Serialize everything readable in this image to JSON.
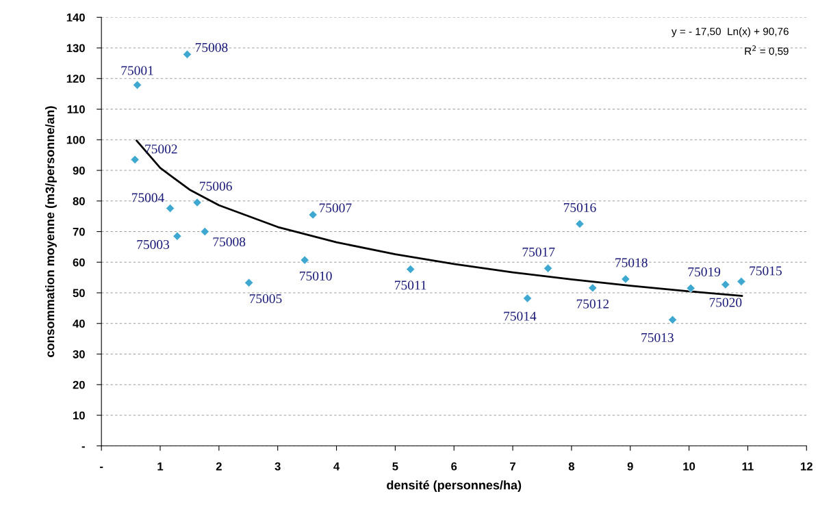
{
  "chart_data": {
    "type": "scatter",
    "xlabel": "densité (personnes/ha)",
    "ylabel": "consommation moyenne (m3/personne/an)",
    "xlim": [
      0,
      12
    ],
    "ylim": [
      0,
      140
    ],
    "xticks": [
      {
        "value": 0,
        "label": "-"
      },
      1,
      2,
      3,
      4,
      5,
      6,
      7,
      8,
      9,
      10,
      11,
      12
    ],
    "yticks": [
      {
        "value": 0,
        "label": "-"
      },
      10,
      20,
      30,
      40,
      50,
      60,
      70,
      80,
      90,
      100,
      110,
      120,
      130,
      140
    ],
    "grid": "y",
    "legend": false,
    "marker": "diamond",
    "series": [
      {
        "color": "#3ea8d0",
        "x": [
          1.46,
          0.61,
          0.57,
          1.17,
          1.63,
          1.29,
          1.76,
          3.6,
          3.46,
          2.51,
          8.14,
          5.26,
          7.6,
          7.25,
          8.36,
          8.92,
          9.72,
          10.03,
          10.62,
          10.89
        ],
        "values": [
          127.9,
          117.9,
          93.5,
          77.6,
          79.5,
          68.5,
          70.0,
          75.5,
          60.7,
          53.3,
          72.5,
          57.7,
          58.0,
          48.2,
          51.6,
          54.5,
          41.2,
          51.5,
          52.7,
          53.7
        ]
      },
      {
        "type": "line",
        "color": "#000000",
        "marker": "none",
        "line_style": "solid",
        "x": [
          0.6,
          1,
          1.5,
          2,
          3,
          4,
          5,
          6,
          7,
          8,
          9,
          10,
          10.9
        ],
        "values": [
          99.7,
          90.8,
          83.7,
          78.6,
          71.5,
          66.5,
          62.6,
          59.4,
          56.7,
          54.4,
          52.3,
          50.5,
          49.0
        ]
      }
    ],
    "annotations": [
      "y = - 17,50  Ln(x) + 90,76",
      "R$^{2}$ = 0,59",
      {
        "text": "75008",
        "x": 1.46,
        "y": 127.9
      },
      {
        "text": "75001",
        "x": 0.61,
        "y": 117.9
      },
      {
        "text": "75002",
        "x": 0.57,
        "y": 93.5
      },
      {
        "text": "75004",
        "x": 1.17,
        "y": 77.6
      },
      {
        "text": "75006",
        "x": 1.63,
        "y": 79.5
      },
      {
        "text": "75003",
        "x": 1.29,
        "y": 68.5
      },
      {
        "text": "75008",
        "x": 1.76,
        "y": 70.0
      },
      {
        "text": "75007",
        "x": 3.6,
        "y": 75.5
      },
      {
        "text": "75010",
        "x": 3.46,
        "y": 60.7
      },
      {
        "text": "75005",
        "x": 2.51,
        "y": 53.3
      },
      {
        "text": "75016",
        "x": 8.14,
        "y": 72.5
      },
      {
        "text": "75011",
        "x": 5.26,
        "y": 57.7
      },
      {
        "text": "75017",
        "x": 7.6,
        "y": 58.0
      },
      {
        "text": "75014",
        "x": 7.25,
        "y": 48.2
      },
      {
        "text": "75012",
        "x": 8.36,
        "y": 51.6
      },
      {
        "text": "75018",
        "x": 8.92,
        "y": 54.5
      },
      {
        "text": "75013",
        "x": 9.72,
        "y": 41.2
      },
      {
        "text": "75019",
        "x": 10.03,
        "y": 51.5
      },
      {
        "text": "75020",
        "x": 10.62,
        "y": 52.7
      },
      {
        "text": "75015",
        "x": 10.89,
        "y": 53.7
      }
    ]
  }
}
